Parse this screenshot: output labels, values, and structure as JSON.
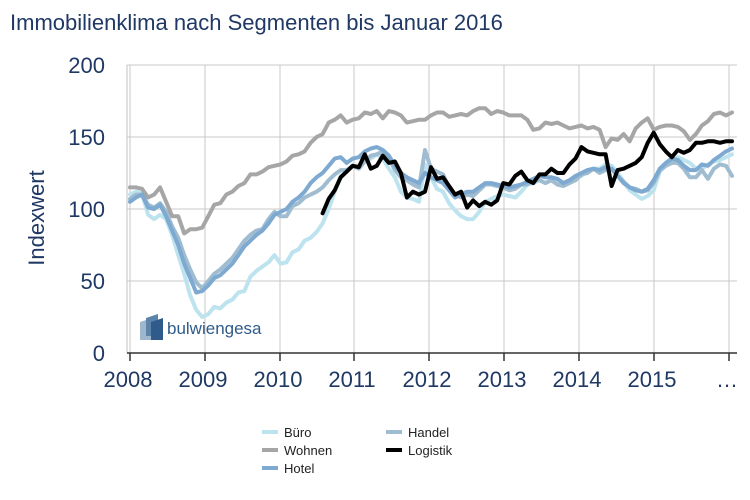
{
  "chart_data": {
    "type": "line",
    "title": "Immobilienklima nach Segmenten bis Januar 2016",
    "ylabel": "Indexwert",
    "xlabel": "",
    "ylim": [
      0,
      200
    ],
    "yticks": [
      0,
      50,
      100,
      150,
      200
    ],
    "x_tick_labels": [
      "2008",
      "2009",
      "2010",
      "2011",
      "2012",
      "2013",
      "2014",
      "2015",
      "…"
    ],
    "grid": true,
    "legend_position": "bottom",
    "brand": "bulwiengesa",
    "colors": {
      "title": "#1f3864",
      "axis_text": "#1f3864",
      "grid": "#c0c0c0",
      "logo": "#2e5b8a"
    },
    "series": [
      {
        "name": "Büro",
        "color": "#bde3ef",
        "width": 4,
        "values": [
          110,
          112,
          111,
          96,
          93,
          96,
          93,
          82,
          68,
          55,
          40,
          30,
          25,
          27,
          32,
          31,
          35,
          37,
          42,
          43,
          53,
          57,
          60,
          63,
          68,
          62,
          63,
          70,
          72,
          78,
          80,
          84,
          90,
          100,
          112,
          123,
          126,
          130,
          130,
          133,
          135,
          138,
          135,
          128,
          122,
          112,
          108,
          107,
          105,
          131,
          122,
          114,
          112,
          104,
          99,
          95,
          93,
          93,
          98,
          105,
          107,
          109,
          110,
          109,
          108,
          112,
          117,
          118,
          120,
          118,
          120,
          118,
          117,
          120,
          122,
          123,
          127,
          128,
          128,
          131,
          130,
          125,
          119,
          113,
          110,
          107,
          109,
          113,
          126,
          130,
          133,
          136,
          134,
          132,
          128,
          128,
          131,
          133,
          134,
          136,
          138
        ]
      },
      {
        "name": "Handel",
        "color": "#9fbcd0",
        "width": 4,
        "values": [
          107,
          110,
          110,
          103,
          101,
          104,
          98,
          88,
          80,
          68,
          58,
          49,
          45,
          50,
          55,
          58,
          62,
          66,
          72,
          78,
          82,
          85,
          86,
          93,
          98,
          95,
          95,
          102,
          104,
          108,
          110,
          112,
          115,
          120,
          124,
          127,
          127,
          130,
          128,
          133,
          137,
          138,
          140,
          136,
          127,
          122,
          120,
          117,
          115,
          141,
          128,
          126,
          124,
          115,
          110,
          108,
          110,
          109,
          113,
          117,
          117,
          116,
          115,
          113,
          114,
          117,
          117,
          120,
          120,
          118,
          120,
          117,
          116,
          118,
          120,
          124,
          125,
          128,
          125,
          127,
          128,
          123,
          119,
          115,
          114,
          112,
          113,
          118,
          127,
          130,
          132,
          132,
          128,
          122,
          122,
          127,
          121,
          128,
          131,
          130,
          123
        ]
      },
      {
        "name": "Wohnen",
        "color": "#a6a6a6",
        "width": 4,
        "values": [
          115,
          115,
          114,
          108,
          110,
          115,
          105,
          95,
          95,
          83,
          86,
          86,
          87,
          95,
          103,
          104,
          110,
          112,
          116,
          118,
          124,
          124,
          126,
          129,
          130,
          131,
          133,
          137,
          138,
          140,
          146,
          150,
          152,
          160,
          162,
          165,
          160,
          162,
          163,
          167,
          166,
          168,
          163,
          168,
          167,
          165,
          160,
          161,
          162,
          162,
          165,
          167,
          167,
          164,
          165,
          166,
          165,
          168,
          170,
          170,
          166,
          168,
          167,
          165,
          165,
          165,
          162,
          155,
          156,
          160,
          159,
          160,
          158,
          156,
          157,
          158,
          156,
          157,
          155,
          143,
          149,
          148,
          152,
          147,
          156,
          160,
          163,
          155,
          157,
          158,
          158,
          157,
          154,
          148,
          152,
          158,
          161,
          166,
          167,
          165,
          167
        ]
      },
      {
        "name": "Logistik",
        "color": "#000000",
        "width": 4,
        "start_index": 32,
        "values": [
          97,
          107,
          113,
          122,
          126,
          130,
          129,
          138,
          128,
          130,
          137,
          132,
          133,
          125,
          108,
          112,
          110,
          112,
          129,
          121,
          122,
          116,
          110,
          112,
          101,
          106,
          102,
          105,
          103,
          106,
          118,
          117,
          123,
          126,
          120,
          118,
          124,
          124,
          128,
          125,
          125,
          131,
          135,
          143,
          140,
          139,
          138,
          138,
          116,
          127,
          128,
          130,
          132,
          136,
          146,
          153,
          145,
          140,
          136,
          141,
          139,
          141,
          146,
          146,
          147,
          147,
          146,
          147,
          147
        ]
      },
      {
        "name": "Hotel",
        "color": "#7ea9d0",
        "width": 4,
        "values": [
          105,
          108,
          110,
          101,
          100,
          103,
          95,
          85,
          75,
          62,
          52,
          42,
          43,
          47,
          52,
          54,
          58,
          62,
          68,
          74,
          78,
          82,
          85,
          90,
          96,
          98,
          100,
          105,
          108,
          112,
          118,
          122,
          125,
          130,
          135,
          136,
          132,
          135,
          136,
          140,
          142,
          143,
          141,
          137,
          130,
          125,
          122,
          120,
          118,
          125,
          122,
          120,
          118,
          113,
          108,
          110,
          112,
          112,
          115,
          118,
          118,
          117,
          116,
          115,
          116,
          117,
          119,
          121,
          123,
          122,
          122,
          121,
          118,
          120,
          123,
          125,
          127,
          128,
          127,
          129,
          128,
          123,
          118,
          115,
          113,
          112,
          114,
          120,
          128,
          132,
          135,
          134,
          130,
          127,
          127,
          131,
          130,
          134,
          137,
          140,
          142
        ]
      }
    ],
    "legend": [
      {
        "name": "Büro",
        "color": "#bde3ef"
      },
      {
        "name": "Handel",
        "color": "#9fbcd0"
      },
      {
        "name": "Wohnen",
        "color": "#a6a6a6"
      },
      {
        "name": "Logistik",
        "color": "#000000"
      },
      {
        "name": "Hotel",
        "color": "#7ea9d0"
      }
    ]
  }
}
